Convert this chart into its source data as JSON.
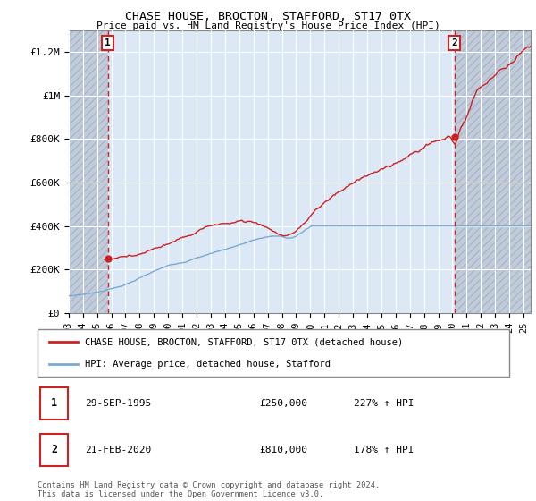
{
  "title": "CHASE HOUSE, BROCTON, STAFFORD, ST17 0TX",
  "subtitle": "Price paid vs. HM Land Registry's House Price Index (HPI)",
  "hpi_label": "HPI: Average price, detached house, Stafford",
  "property_label": "CHASE HOUSE, BROCTON, STAFFORD, ST17 0TX (detached house)",
  "annotation1_date": "29-SEP-1995",
  "annotation1_price": "£250,000",
  "annotation1_hpi": "227% ↑ HPI",
  "annotation2_date": "21-FEB-2020",
  "annotation2_price": "£810,000",
  "annotation2_hpi": "178% ↑ HPI",
  "footer": "Contains HM Land Registry data © Crown copyright and database right 2024.\nThis data is licensed under the Open Government Licence v3.0.",
  "sale1_x": 1995.75,
  "sale1_y": 250000,
  "sale2_x": 2020.13,
  "sale2_y": 810000,
  "hpi_color": "#7aaad4",
  "property_color": "#cc2222",
  "dashed_color": "#cc2222",
  "plot_bg_color": "#dce8f5",
  "hatch_color": "#c0c8d8",
  "ylim": [
    0,
    1300000
  ],
  "xlim_start": 1993,
  "xlim_end": 2025.5,
  "yticks": [
    0,
    200000,
    400000,
    600000,
    800000,
    1000000,
    1200000
  ],
  "ytick_labels": [
    "£0",
    "£200K",
    "£400K",
    "£600K",
    "£800K",
    "£1M",
    "£1.2M"
  ],
  "xtick_labels": [
    "93",
    "94",
    "95",
    "96",
    "97",
    "98",
    "99",
    "00",
    "01",
    "02",
    "03",
    "04",
    "05",
    "06",
    "07",
    "08",
    "09",
    "10",
    "11",
    "12",
    "13",
    "14",
    "15",
    "16",
    "17",
    "18",
    "19",
    "20",
    "21",
    "22",
    "23",
    "24",
    "25"
  ],
  "xticks": [
    1993,
    1994,
    1995,
    1996,
    1997,
    1998,
    1999,
    2000,
    2001,
    2002,
    2003,
    2004,
    2005,
    2006,
    2007,
    2008,
    2009,
    2010,
    2011,
    2012,
    2013,
    2014,
    2015,
    2016,
    2017,
    2018,
    2019,
    2020,
    2021,
    2022,
    2023,
    2024,
    2025
  ]
}
